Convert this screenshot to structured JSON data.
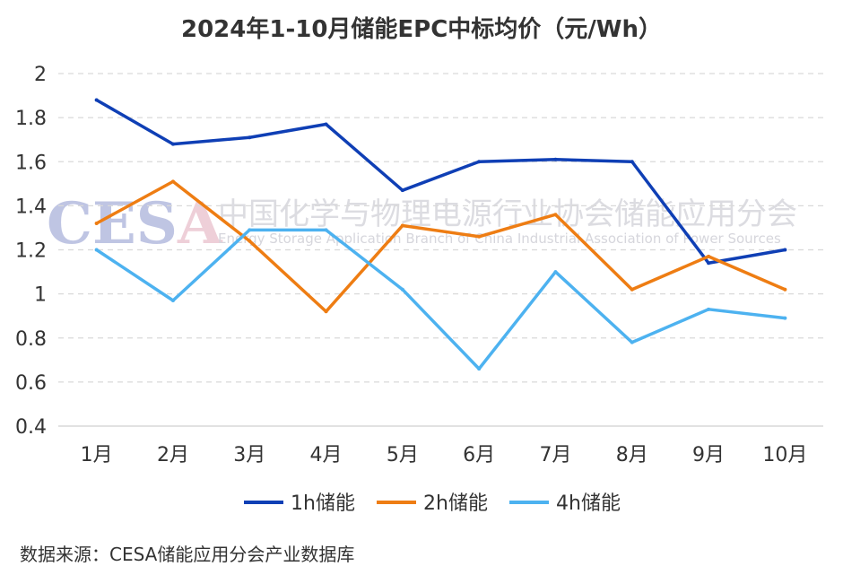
{
  "chart_data": {
    "type": "line",
    "title": "2024年1-10月储能EPC中标均价（元/Wh）",
    "categories": [
      "1月",
      "2月",
      "3月",
      "4月",
      "5月",
      "6月",
      "7月",
      "8月",
      "9月",
      "10月"
    ],
    "ylim": [
      0.4,
      2
    ],
    "yticks": [
      "0.4",
      "0.6",
      "0.8",
      "1",
      "1.2",
      "1.4",
      "1.6",
      "1.8",
      "2"
    ],
    "grid": true,
    "legend_position": "bottom",
    "series": [
      {
        "name": "1h储能",
        "color": "#0f3fb5",
        "values": [
          1.88,
          1.68,
          1.71,
          1.77,
          1.47,
          1.6,
          1.61,
          1.6,
          1.14,
          1.2
        ]
      },
      {
        "name": "2h储能",
        "color": "#ee7d13",
        "values": [
          1.32,
          1.51,
          1.24,
          0.92,
          1.31,
          1.26,
          1.36,
          1.02,
          1.17,
          1.02
        ]
      },
      {
        "name": "4h储能",
        "color": "#4db2f0",
        "values": [
          1.2,
          0.97,
          1.29,
          1.29,
          1.02,
          0.66,
          1.1,
          0.78,
          0.93,
          0.89
        ]
      }
    ]
  },
  "watermark": {
    "logo": "CESA",
    "cn": "中国化学与物理电源行业协会储能应用分会",
    "en": "Energy Storage Application Branch of China Industrial Association of Power Sources",
    "colors": [
      "#8a94c8",
      "#e8b5c5"
    ]
  },
  "source": "数据来源：CESA储能应用分会产业数据库"
}
